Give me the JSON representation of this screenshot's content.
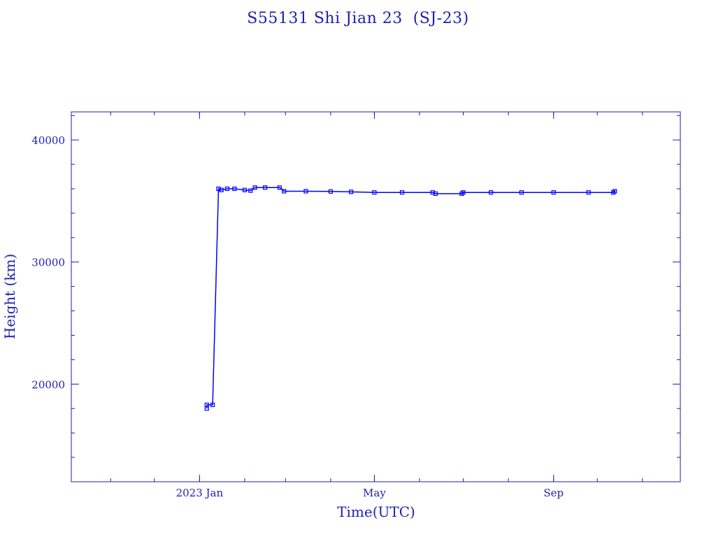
{
  "chart_data": {
    "type": "line",
    "title": "S55131 Shi Jian 23  (SJ-23)",
    "xlabel": "Time(UTC)",
    "ylabel": "Height (km)",
    "xlim": [
      "2022-10-05",
      "2023-11-27"
    ],
    "ylim": [
      12000,
      42300
    ],
    "x_ticks": [
      {
        "date": "2023-01-01",
        "label": "2023 Jan"
      },
      {
        "date": "2023-05-01",
        "label": "May"
      },
      {
        "date": "2023-09-01",
        "label": "Sep"
      }
    ],
    "y_ticks": [
      20000,
      30000,
      40000
    ],
    "color": "#0000ff",
    "axis_color": "#1e1eb4",
    "series": [
      {
        "points": [
          [
            "2023-01-06",
            18000
          ],
          [
            "2023-01-06",
            18300
          ],
          [
            "2023-01-10",
            18300
          ],
          [
            "2023-01-14",
            36000
          ],
          [
            "2023-01-16",
            35900
          ],
          [
            "2023-01-20",
            36000
          ],
          [
            "2023-01-25",
            36000
          ],
          [
            "2023-02-01",
            35900
          ],
          [
            "2023-02-05",
            35850
          ],
          [
            "2023-02-08",
            36100
          ],
          [
            "2023-02-15",
            36100
          ],
          [
            "2023-02-25",
            36100
          ],
          [
            "2023-02-28",
            35800
          ],
          [
            "2023-03-15",
            35800
          ],
          [
            "2023-04-01",
            35780
          ],
          [
            "2023-04-15",
            35750
          ],
          [
            "2023-05-01",
            35700
          ],
          [
            "2023-05-20",
            35700
          ],
          [
            "2023-06-10",
            35700
          ],
          [
            "2023-06-12",
            35600
          ],
          [
            "2023-06-30",
            35600
          ],
          [
            "2023-07-01",
            35700
          ],
          [
            "2023-07-20",
            35700
          ],
          [
            "2023-08-10",
            35700
          ],
          [
            "2023-09-01",
            35700
          ],
          [
            "2023-09-25",
            35700
          ],
          [
            "2023-10-12",
            35700
          ],
          [
            "2023-10-13",
            35800
          ]
        ]
      }
    ]
  }
}
